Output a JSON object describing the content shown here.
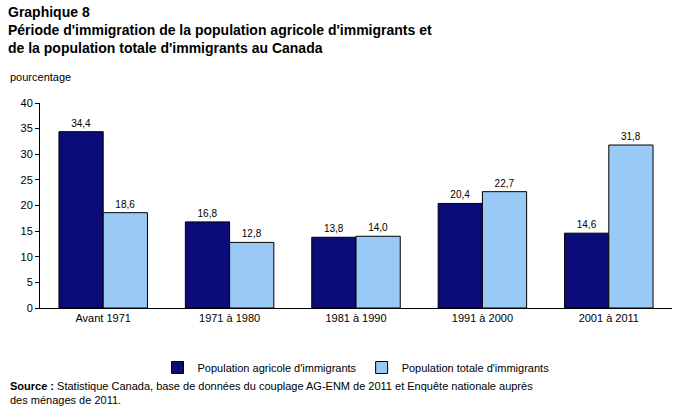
{
  "chart_data": {
    "type": "bar",
    "title": "Graphique 8",
    "subtitle": [
      "Période d'immigration de la population agricole d'immigrants et",
      "de la population totale d'immigrants au Canada"
    ],
    "y_label": "pourcentage",
    "categories": [
      "Avant 1971",
      "1971 à 1980",
      "1981 à 1990",
      "1991 à 2000",
      "2001 à 2011"
    ],
    "series": [
      {
        "name": "Population agricole d'immigrants",
        "color": "#0c0c78",
        "values": [
          34.4,
          16.8,
          13.8,
          20.4,
          14.6
        ],
        "value_labels": [
          "34,4",
          "16,8",
          "13,8",
          "20,4",
          "14,6"
        ]
      },
      {
        "name": "Population totale d'immigrants",
        "color": "#99c9f5",
        "values": [
          18.6,
          12.8,
          14.0,
          22.7,
          31.8
        ],
        "value_labels": [
          "18,6",
          "12,8",
          "14,0",
          "22,7",
          "31,8"
        ]
      }
    ],
    "ylim": [
      0,
      40
    ],
    "yticks": [
      0,
      5,
      10,
      15,
      20,
      25,
      30,
      35,
      40
    ],
    "grid": false,
    "legend": "bottom",
    "data_labels": true,
    "source": {
      "label": "Source :",
      "text": [
        "Statistique Canada, base de données du couplage AG-ENM de 2011 et Enquête nationale auprès",
        "des ménages de 2011."
      ]
    }
  }
}
